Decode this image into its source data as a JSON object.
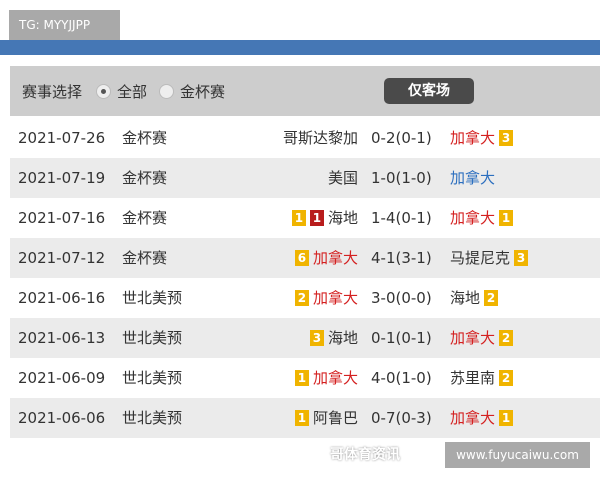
{
  "tag": "TG: MYYJJPP",
  "filter": {
    "label": "赛事选择",
    "options": [
      {
        "label": "全部",
        "selected": true
      },
      {
        "label": "金杯赛",
        "selected": false
      }
    ],
    "button": "仅客场"
  },
  "matches": [
    {
      "date": "2021-07-26",
      "comp": "金杯赛",
      "home": "哥斯达黎加",
      "home_color": "#333333",
      "home_badges": [],
      "score": "0-2(0-1)",
      "away": "加拿大",
      "away_color": "#d42020",
      "away_badges": [
        {
          "v": "3",
          "c": "yellow"
        }
      ]
    },
    {
      "date": "2021-07-19",
      "comp": "金杯赛",
      "home": "美国",
      "home_color": "#333333",
      "home_badges": [],
      "score": "1-0(1-0)",
      "away": "加拿大",
      "away_color": "#2c6fbf",
      "away_badges": []
    },
    {
      "date": "2021-07-16",
      "comp": "金杯赛",
      "home": "海地",
      "home_color": "#333333",
      "home_badges": [
        {
          "v": "1",
          "c": "yellow"
        },
        {
          "v": "1",
          "c": "red"
        }
      ],
      "score": "1-4(0-1)",
      "away": "加拿大",
      "away_color": "#d42020",
      "away_badges": [
        {
          "v": "1",
          "c": "yellow"
        }
      ]
    },
    {
      "date": "2021-07-12",
      "comp": "金杯赛",
      "home": "加拿大",
      "home_color": "#d42020",
      "home_badges": [
        {
          "v": "6",
          "c": "yellow"
        }
      ],
      "score": "4-1(3-1)",
      "away": "马提尼克",
      "away_color": "#333333",
      "away_badges": [
        {
          "v": "3",
          "c": "yellow"
        }
      ]
    },
    {
      "date": "2021-06-16",
      "comp": "世北美预",
      "home": "加拿大",
      "home_color": "#d42020",
      "home_badges": [
        {
          "v": "2",
          "c": "yellow"
        }
      ],
      "score": "3-0(0-0)",
      "away": "海地",
      "away_color": "#333333",
      "away_badges": [
        {
          "v": "2",
          "c": "yellow"
        }
      ]
    },
    {
      "date": "2021-06-13",
      "comp": "世北美预",
      "home": "海地",
      "home_color": "#333333",
      "home_badges": [
        {
          "v": "3",
          "c": "yellow"
        }
      ],
      "score": "0-1(0-1)",
      "away": "加拿大",
      "away_color": "#d42020",
      "away_badges": [
        {
          "v": "2",
          "c": "yellow"
        }
      ]
    },
    {
      "date": "2021-06-09",
      "comp": "世北美预",
      "home": "加拿大",
      "home_color": "#d42020",
      "home_badges": [
        {
          "v": "1",
          "c": "yellow"
        }
      ],
      "score": "4-0(1-0)",
      "away": "苏里南",
      "away_color": "#333333",
      "away_badges": [
        {
          "v": "2",
          "c": "yellow"
        }
      ]
    },
    {
      "date": "2021-06-06",
      "comp": "世北美预",
      "home": "阿鲁巴",
      "home_color": "#333333",
      "home_badges": [
        {
          "v": "1",
          "c": "yellow"
        }
      ],
      "score": "0-7(0-3)",
      "away": "加拿大",
      "away_color": "#d42020",
      "away_badges": [
        {
          "v": "1",
          "c": "yellow"
        }
      ]
    }
  ],
  "watermark": "哥体育资讯",
  "url": "www.fuyucaiwu.com"
}
